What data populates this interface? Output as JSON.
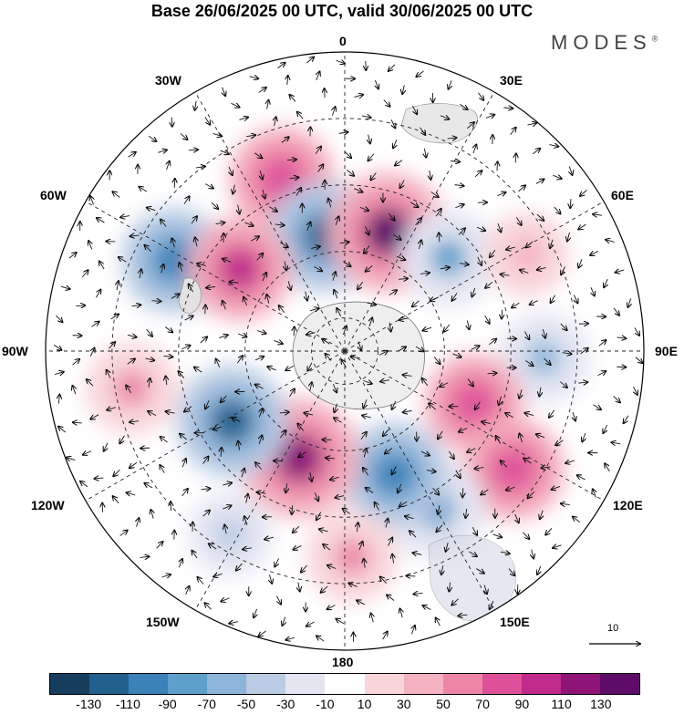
{
  "title": "Base 26/06/2025 00 UTC, valid 30/06/2025 00 UTC",
  "brand": "MODES",
  "brand_mark": "®",
  "longitude_labels": {
    "lon_0": "0",
    "lon_30e": "30E",
    "lon_60e": "60E",
    "lon_90e": "90E",
    "lon_120e": "120E",
    "lon_150e": "150E",
    "lon_180": "180",
    "lon_150w": "150W",
    "lon_120w": "120W",
    "lon_90w": "90W",
    "lon_60w": "60W",
    "lon_30w": "30W"
  },
  "vector_reference": {
    "label": "10"
  },
  "colorbar": {
    "colors": [
      "#173e5f",
      "#21608e",
      "#3a82b8",
      "#5f9fcb",
      "#8db5da",
      "#bccbe4",
      "#e3e5f1",
      "#ffffff",
      "#f9d5d9",
      "#f4b1bf",
      "#ec85a6",
      "#de519a",
      "#c02a8a",
      "#8e1577",
      "#5e0b69"
    ],
    "ticks": [
      "-130",
      "-110",
      "-90",
      "-70",
      "-50",
      "-30",
      "-10",
      "10",
      "30",
      "50",
      "70",
      "90",
      "110",
      "130"
    ]
  },
  "anomaly_centers": [
    {
      "lon": -20,
      "lat": -35,
      "value": 95,
      "color": "#de519a"
    },
    {
      "lon": -10,
      "lat": -55,
      "value": -110,
      "color": "#21608e"
    },
    {
      "lon": 20,
      "lat": -52,
      "value": 130,
      "color": "#5e0b69"
    },
    {
      "lon": -62,
      "lat": -32,
      "value": -95,
      "color": "#3a82b8"
    },
    {
      "lon": -52,
      "lat": -50,
      "value": 90,
      "color": "#c02a8a"
    },
    {
      "lon": 48,
      "lat": -48,
      "value": -70,
      "color": "#5f9fcb"
    },
    {
      "lon": 62,
      "lat": -28,
      "value": 40,
      "color": "#f4b1bf"
    },
    {
      "lon": 92,
      "lat": -30,
      "value": -55,
      "color": "#8db5da"
    },
    {
      "lon": 112,
      "lat": -48,
      "value": 80,
      "color": "#de519a"
    },
    {
      "lon": 125,
      "lat": -28,
      "value": 85,
      "color": "#de519a"
    },
    {
      "lon": 150,
      "lat": -35,
      "value": -75,
      "color": "#5f9fcb"
    },
    {
      "lon": 158,
      "lat": -50,
      "value": -95,
      "color": "#3a82b8"
    },
    {
      "lon": 178,
      "lat": -28,
      "value": 60,
      "color": "#ec85a6"
    },
    {
      "lon": -157,
      "lat": -55,
      "value": 130,
      "color": "#8e1577"
    },
    {
      "lon": -122,
      "lat": -50,
      "value": -110,
      "color": "#21608e"
    },
    {
      "lon": -100,
      "lat": -25,
      "value": 60,
      "color": "#ec85a6"
    },
    {
      "lon": -148,
      "lat": -25,
      "value": -35,
      "color": "#bccbe4"
    }
  ]
}
